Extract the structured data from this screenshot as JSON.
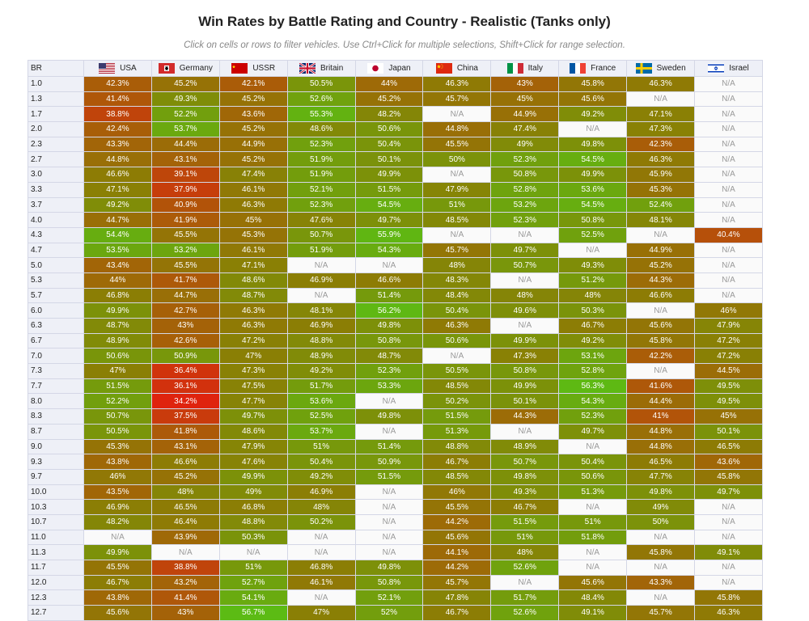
{
  "title": "Win Rates by Battle Rating and Country - Realistic (Tanks only)",
  "subtitle": "Click on cells or rows to filter vehicles. Use Ctrl+Click for multiple selections, Shift+Click for range selection.",
  "br_header": "BR",
  "na_label": "N/A",
  "countries": [
    {
      "name": "USA",
      "flag": "usa-flag-icon"
    },
    {
      "name": "Germany",
      "flag": "germany-flag-icon"
    },
    {
      "name": "USSR",
      "flag": "ussr-flag-icon"
    },
    {
      "name": "Britain",
      "flag": "britain-flag-icon"
    },
    {
      "name": "Japan",
      "flag": "japan-flag-icon"
    },
    {
      "name": "China",
      "flag": "china-flag-icon"
    },
    {
      "name": "Italy",
      "flag": "italy-flag-icon"
    },
    {
      "name": "France",
      "flag": "france-flag-icon"
    },
    {
      "name": "Sweden",
      "flag": "sweden-flag-icon"
    },
    {
      "name": "Israel",
      "flag": "israel-flag-icon"
    }
  ],
  "chart_data": {
    "type": "heatmap",
    "title": "Win Rates by Battle Rating and Country - Realistic (Tanks only)",
    "x": [
      "USA",
      "Germany",
      "USSR",
      "Britain",
      "Japan",
      "China",
      "Italy",
      "France",
      "Sweden",
      "Israel"
    ],
    "y": [
      "1.0",
      "1.3",
      "1.7",
      "2.0",
      "2.3",
      "2.7",
      "3.0",
      "3.3",
      "3.7",
      "4.0",
      "4.3",
      "4.7",
      "5.0",
      "5.3",
      "5.7",
      "6.0",
      "6.3",
      "6.7",
      "7.0",
      "7.3",
      "7.7",
      "8.0",
      "8.3",
      "8.7",
      "9.0",
      "9.3",
      "9.7",
      "10.0",
      "10.3",
      "10.7",
      "11.0",
      "11.3",
      "11.7",
      "12.0",
      "12.3",
      "12.7"
    ],
    "unit": "%",
    "values": [
      [
        42.3,
        45.2,
        42.1,
        50.5,
        44,
        46.3,
        43,
        45.8,
        46.3,
        null
      ],
      [
        41.4,
        49.3,
        45.2,
        52.6,
        45.2,
        45.7,
        45,
        45.6,
        null,
        null
      ],
      [
        38.8,
        52.2,
        43.6,
        55.3,
        48.2,
        null,
        44.9,
        49.2,
        47.1,
        null
      ],
      [
        42.4,
        53.7,
        45.2,
        48.6,
        50.6,
        44.8,
        47.4,
        null,
        47.3,
        null
      ],
      [
        43.3,
        44.4,
        44.9,
        52.3,
        50.4,
        45.5,
        49,
        49.8,
        42.3,
        null
      ],
      [
        44.8,
        43.1,
        45.2,
        51.9,
        50.1,
        50,
        52.3,
        54.5,
        46.3,
        null
      ],
      [
        46.6,
        39.1,
        47.4,
        51.9,
        49.9,
        null,
        50.8,
        49.9,
        45.9,
        null
      ],
      [
        47.1,
        37.9,
        46.1,
        52.1,
        51.5,
        47.9,
        52.8,
        53.6,
        45.3,
        null
      ],
      [
        49.2,
        40.9,
        46.3,
        52.3,
        54.5,
        51,
        53.2,
        54.5,
        52.4,
        null
      ],
      [
        44.7,
        41.9,
        45,
        47.6,
        49.7,
        48.5,
        52.3,
        50.8,
        48.1,
        null
      ],
      [
        54.4,
        45.5,
        45.3,
        50.7,
        55.9,
        null,
        null,
        52.5,
        null,
        40.4
      ],
      [
        53.5,
        53.2,
        46.1,
        51.9,
        54.3,
        45.7,
        49.7,
        null,
        44.9,
        null
      ],
      [
        43.4,
        45.5,
        47.1,
        null,
        null,
        48,
        50.7,
        49.3,
        45.2,
        null
      ],
      [
        44,
        41.7,
        48.6,
        46.9,
        46.6,
        48.3,
        null,
        51.2,
        44.3,
        null
      ],
      [
        46.8,
        44.7,
        48.7,
        null,
        51.4,
        48.4,
        48,
        48,
        46.6,
        null
      ],
      [
        49.9,
        42.7,
        46.3,
        48.1,
        56.2,
        50.4,
        49.6,
        50.3,
        null,
        46
      ],
      [
        48.7,
        43,
        46.3,
        46.9,
        49.8,
        46.3,
        null,
        46.7,
        45.6,
        47.9
      ],
      [
        48.9,
        42.6,
        47.2,
        48.8,
        50.8,
        50.6,
        49.9,
        49.2,
        45.8,
        47.2
      ],
      [
        50.6,
        50.9,
        47,
        48.9,
        48.7,
        null,
        47.3,
        53.1,
        42.2,
        47.2
      ],
      [
        47,
        36.4,
        47.3,
        49.2,
        52.3,
        50.5,
        50.8,
        52.8,
        null,
        44.5
      ],
      [
        51.5,
        36.1,
        47.5,
        51.7,
        53.3,
        48.5,
        49.9,
        56.3,
        41.6,
        49.5
      ],
      [
        52.2,
        34.2,
        47.7,
        53.6,
        null,
        50.2,
        50.1,
        54.3,
        44.4,
        49.5
      ],
      [
        50.7,
        37.5,
        49.7,
        52.5,
        49.8,
        51.5,
        44.3,
        52.3,
        41,
        45
      ],
      [
        50.5,
        41.8,
        48.6,
        53.7,
        null,
        51.3,
        null,
        49.7,
        44.8,
        50.1
      ],
      [
        45.3,
        43.1,
        47.9,
        51,
        51.4,
        48.8,
        48.9,
        null,
        44.8,
        46.5
      ],
      [
        43.8,
        46.6,
        47.6,
        50.4,
        50.9,
        46.7,
        50.7,
        50.4,
        46.5,
        43.6
      ],
      [
        46,
        45.2,
        49.9,
        49.2,
        51.5,
        48.5,
        49.8,
        50.6,
        47.7,
        45.8
      ],
      [
        43.5,
        48,
        49,
        46.9,
        null,
        46,
        49.3,
        51.3,
        49.8,
        49.7
      ],
      [
        46.9,
        46.5,
        46.8,
        48,
        null,
        45.5,
        46.7,
        null,
        49,
        null
      ],
      [
        48.2,
        46.4,
        48.8,
        50.2,
        null,
        44.2,
        51.5,
        51,
        50,
        null
      ],
      [
        null,
        43.9,
        50.3,
        null,
        null,
        45.6,
        51,
        51.8,
        null,
        null
      ],
      [
        49.9,
        null,
        null,
        null,
        null,
        44.1,
        48,
        null,
        45.8,
        49.1
      ],
      [
        45.5,
        38.8,
        51,
        46.8,
        49.8,
        44.2,
        52.6,
        null,
        null,
        null
      ],
      [
        46.7,
        43.2,
        52.7,
        46.1,
        50.8,
        45.7,
        null,
        45.6,
        43.3,
        null
      ],
      [
        43.8,
        41.4,
        54.1,
        null,
        52.1,
        47.8,
        51.7,
        48.4,
        null,
        45.8
      ],
      [
        45.6,
        43,
        56.7,
        47,
        52,
        46.7,
        52.6,
        49.1,
        45.7,
        46.3
      ]
    ],
    "color_scale": {
      "low": "#e0220e",
      "mid": "#8a7f05",
      "high": "#5bbd14",
      "na": "#fafafa"
    }
  }
}
